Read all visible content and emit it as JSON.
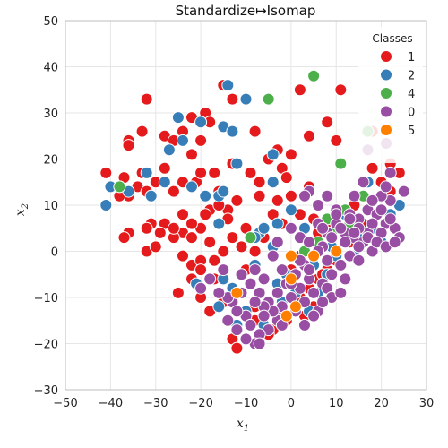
{
  "chart_data": {
    "type": "scatter",
    "title": "Standardize↦Isomap",
    "xlabel": "x",
    "xlabel_sub": "1",
    "ylabel": "x",
    "ylabel_sub": "2",
    "xlim": [
      -50,
      30
    ],
    "ylim": [
      -30,
      50
    ],
    "xticks": [
      -50,
      -40,
      -30,
      -20,
      -10,
      0,
      10,
      20,
      30
    ],
    "yticks": [
      -30,
      -20,
      -10,
      0,
      10,
      20,
      30,
      40,
      50
    ],
    "grid": true,
    "legend": {
      "title": "Classes",
      "placement": "top-right"
    },
    "series": [
      {
        "name": "1",
        "color": "#e41a1c",
        "points": [
          [
            -15,
            36
          ],
          [
            -8,
            26
          ],
          [
            -13,
            33
          ],
          [
            -32,
            33
          ],
          [
            -33,
            26
          ],
          [
            -36,
            24
          ],
          [
            -36,
            23
          ],
          [
            -28,
            25
          ],
          [
            -26,
            24
          ],
          [
            -24,
            26
          ],
          [
            -22,
            29
          ],
          [
            -19,
            30
          ],
          [
            -18,
            28
          ],
          [
            -20,
            24
          ],
          [
            -22,
            21
          ],
          [
            -28,
            18
          ],
          [
            -33,
            17
          ],
          [
            -37,
            16
          ],
          [
            -41,
            17
          ],
          [
            -30,
            15
          ],
          [
            -34,
            14
          ],
          [
            -38,
            14
          ],
          [
            -36,
            12
          ],
          [
            -32,
            13
          ],
          [
            -26,
            13
          ],
          [
            -24,
            15
          ],
          [
            -21,
            15
          ],
          [
            -17,
            17
          ],
          [
            -13,
            19
          ],
          [
            -9,
            17
          ],
          [
            -7,
            15
          ],
          [
            -5,
            20
          ],
          [
            -3,
            22
          ],
          [
            0,
            21
          ],
          [
            2,
            35
          ],
          [
            8,
            28
          ],
          [
            10,
            24
          ],
          [
            11,
            35
          ],
          [
            4,
            25
          ],
          [
            -2,
            18
          ],
          [
            -1,
            16
          ],
          [
            0,
            12
          ],
          [
            -3,
            11
          ],
          [
            -7,
            12
          ],
          [
            -12,
            11
          ],
          [
            -16,
            13
          ],
          [
            -14,
            9
          ],
          [
            -18,
            9
          ],
          [
            -19,
            8
          ],
          [
            -20,
            5
          ],
          [
            -22,
            6
          ],
          [
            -24,
            8
          ],
          [
            -24,
            4
          ],
          [
            -28,
            6
          ],
          [
            -29,
            4
          ],
          [
            -31,
            6
          ],
          [
            -32,
            5
          ],
          [
            -36,
            4
          ],
          [
            -37,
            3
          ],
          [
            -32,
            0
          ],
          [
            -26,
            3
          ],
          [
            -22,
            3
          ],
          [
            -24,
            -1
          ],
          [
            -22,
            -3
          ],
          [
            -20,
            -2
          ],
          [
            -17,
            -2
          ],
          [
            -18,
            2
          ],
          [
            -20,
            -4
          ],
          [
            -22,
            -6
          ],
          [
            -20,
            -10
          ],
          [
            -25,
            -9
          ],
          [
            -18,
            -13
          ],
          [
            -15,
            -11
          ],
          [
            -12,
            -13
          ],
          [
            -14,
            -15
          ],
          [
            -13,
            -19
          ],
          [
            -12,
            -21
          ],
          [
            -8,
            -12
          ],
          [
            -6,
            -14
          ],
          [
            -10,
            -4
          ],
          [
            -8,
            0
          ],
          [
            -11,
            1
          ],
          [
            -13,
            3
          ],
          [
            -14,
            7
          ],
          [
            -16,
            10
          ],
          [
            -10,
            5
          ],
          [
            -6,
            3
          ],
          [
            -4,
            8
          ],
          [
            -2,
            6
          ],
          [
            2,
            8
          ],
          [
            4,
            14
          ],
          [
            5,
            7
          ],
          [
            6,
            4
          ],
          [
            9,
            5
          ],
          [
            12,
            8
          ],
          [
            14,
            10
          ],
          [
            16,
            12
          ],
          [
            20,
            15
          ],
          [
            18,
            18
          ],
          [
            22,
            19
          ],
          [
            24,
            17
          ],
          [
            22,
            13
          ],
          [
            18,
            26
          ],
          [
            16,
            6
          ],
          [
            13,
            2
          ],
          [
            10,
            -2
          ],
          [
            8,
            -4
          ],
          [
            6,
            -6
          ],
          [
            4,
            -8
          ],
          [
            2,
            -10
          ],
          [
            1,
            -13
          ],
          [
            -1,
            -15
          ],
          [
            3,
            -14
          ],
          [
            5,
            -12
          ],
          [
            7,
            -5
          ],
          [
            -4,
            -17
          ],
          [
            -8,
            -15
          ],
          [
            -5,
            -18
          ],
          [
            -3,
            -13
          ],
          [
            0,
            -4
          ],
          [
            2,
            -1
          ],
          [
            -15,
            0
          ],
          [
            -17,
            -6
          ],
          [
            -20,
            17
          ],
          [
            -26,
            5
          ],
          [
            -30,
            1
          ],
          [
            -38,
            12
          ]
        ]
      },
      {
        "name": "2",
        "color": "#377eb8",
        "points": [
          [
            -14,
            36
          ],
          [
            -10,
            33
          ],
          [
            -20,
            28
          ],
          [
            -25,
            29
          ],
          [
            -15,
            27
          ],
          [
            -13,
            26
          ],
          [
            -24,
            24
          ],
          [
            -27,
            22
          ],
          [
            -32,
            17
          ],
          [
            -40,
            14
          ],
          [
            -36,
            13
          ],
          [
            -31,
            12
          ],
          [
            -28,
            15
          ],
          [
            -22,
            14
          ],
          [
            -19,
            12
          ],
          [
            -16,
            12
          ],
          [
            -15,
            13
          ],
          [
            -12,
            19
          ],
          [
            -4,
            21
          ],
          [
            -4,
            15
          ],
          [
            -7,
            4
          ],
          [
            -6,
            5
          ],
          [
            -3,
            6
          ],
          [
            0,
            9
          ],
          [
            -8,
            3
          ],
          [
            -21,
            -7
          ],
          [
            -15,
            -6
          ],
          [
            -13,
            -8
          ],
          [
            -16,
            -12
          ],
          [
            -10,
            -13
          ],
          [
            -12,
            -16
          ],
          [
            -6,
            -16
          ],
          [
            -41,
            10
          ],
          [
            -16,
            6
          ],
          [
            5,
            -3
          ],
          [
            8,
            -5
          ],
          [
            10,
            -1
          ],
          [
            12,
            8
          ],
          [
            13,
            6
          ],
          [
            15,
            3
          ],
          [
            18,
            5
          ],
          [
            20,
            2
          ],
          [
            22,
            8
          ],
          [
            24,
            10
          ],
          [
            17,
            15
          ],
          [
            -2,
            -11
          ],
          [
            1,
            -9
          ],
          [
            4,
            -13
          ],
          [
            -4,
            1
          ],
          [
            3,
            5
          ],
          [
            9,
            1
          ],
          [
            14,
            -1
          ],
          [
            -8,
            -3
          ],
          [
            -1,
            -5
          ],
          [
            6,
            -9
          ],
          [
            -3,
            -7
          ]
        ]
      },
      {
        "name": "4",
        "color": "#4daf4a",
        "points": [
          [
            5,
            38
          ],
          [
            -5,
            33
          ],
          [
            -38,
            14
          ],
          [
            11,
            19
          ],
          [
            17,
            26
          ],
          [
            16,
            12
          ],
          [
            12,
            9
          ],
          [
            8,
            7
          ],
          [
            -9,
            3
          ],
          [
            3,
            0
          ],
          [
            6,
            2
          ],
          [
            9,
            4
          ],
          [
            13,
            6
          ]
        ]
      },
      {
        "name": "0",
        "color": "#984ea3",
        "points": [
          [
            4,
            13
          ],
          [
            8,
            12
          ],
          [
            10,
            9
          ],
          [
            13,
            8
          ],
          [
            15,
            7
          ],
          [
            17,
            9
          ],
          [
            19,
            8
          ],
          [
            21,
            6
          ],
          [
            23,
            5
          ],
          [
            24,
            3
          ],
          [
            22,
            11
          ],
          [
            20,
            12
          ],
          [
            16,
            15
          ],
          [
            22,
            17
          ],
          [
            25,
            13
          ],
          [
            6,
            6
          ],
          [
            8,
            4
          ],
          [
            10,
            6
          ],
          [
            12,
            4
          ],
          [
            14,
            3
          ],
          [
            16,
            2
          ],
          [
            18,
            0
          ],
          [
            20,
            4
          ],
          [
            22,
            7
          ],
          [
            17,
            4
          ],
          [
            15,
            1
          ],
          [
            13,
            -1
          ],
          [
            11,
            -3
          ],
          [
            9,
            -5
          ],
          [
            7,
            -7
          ],
          [
            5,
            -9
          ],
          [
            3,
            -11
          ],
          [
            1,
            -13
          ],
          [
            -1,
            -14
          ],
          [
            -3,
            -15
          ],
          [
            -5,
            -17
          ],
          [
            -7,
            -18
          ],
          [
            -8,
            -20
          ],
          [
            -10,
            -19
          ],
          [
            -12,
            -17
          ],
          [
            -14,
            -15
          ],
          [
            -13,
            -11
          ],
          [
            -11,
            -9
          ],
          [
            -9,
            -7
          ],
          [
            -7,
            -9
          ],
          [
            -5,
            -11
          ],
          [
            -3,
            -9
          ],
          [
            -1,
            -7
          ],
          [
            1,
            -5
          ],
          [
            3,
            -3
          ],
          [
            5,
            -1
          ],
          [
            7,
            1
          ],
          [
            9,
            3
          ],
          [
            11,
            5
          ],
          [
            13,
            7
          ],
          [
            15,
            5
          ],
          [
            17,
            3
          ],
          [
            19,
            2
          ],
          [
            21,
            1
          ],
          [
            23,
            2
          ],
          [
            4,
            -6
          ],
          [
            2,
            -8
          ],
          [
            0,
            -10
          ],
          [
            -2,
            -12
          ],
          [
            -4,
            -13
          ],
          [
            -6,
            -12
          ],
          [
            -8,
            -11
          ],
          [
            -10,
            -14
          ],
          [
            -12,
            -13
          ],
          [
            -14,
            -10
          ],
          [
            -16,
            -9
          ],
          [
            -18,
            -6
          ],
          [
            -20,
            -8
          ],
          [
            -15,
            -4
          ],
          [
            -11,
            -5
          ],
          [
            -6,
            -6
          ],
          [
            -2,
            -4
          ],
          [
            2,
            -2
          ],
          [
            6,
            0
          ],
          [
            8,
            -2
          ],
          [
            10,
            0
          ],
          [
            12,
            2
          ],
          [
            14,
            4
          ],
          [
            18,
            6
          ],
          [
            20,
            9
          ],
          [
            6,
            10
          ],
          [
            2,
            3
          ],
          [
            -4,
            -1
          ],
          [
            -8,
            -4
          ],
          [
            0,
            -7
          ],
          [
            4,
            -4
          ],
          [
            8,
            -8
          ],
          [
            12,
            -6
          ],
          [
            9,
            -10
          ],
          [
            6,
            -13
          ],
          [
            3,
            -16
          ],
          [
            -2,
            -16
          ],
          [
            -6,
            -14
          ],
          [
            -9,
            -16
          ],
          [
            -7,
            -20
          ],
          [
            4,
            2
          ],
          [
            7,
            5
          ],
          [
            10,
            8
          ],
          [
            14,
            12
          ],
          [
            18,
            11
          ],
          [
            21,
            14
          ],
          [
            17,
            22
          ],
          [
            3,
            12
          ],
          [
            0,
            5
          ],
          [
            -3,
            2
          ],
          [
            15,
            -2
          ],
          [
            11,
            -9
          ],
          [
            7,
            -11
          ],
          [
            5,
            -14
          ]
        ]
      },
      {
        "name": "5",
        "color": "#ff7f00",
        "points": [
          [
            -12,
            -9
          ],
          [
            0,
            -6
          ],
          [
            1,
            -12
          ],
          [
            -1,
            -14
          ],
          [
            5,
            -1
          ],
          [
            0,
            -1
          ],
          [
            10,
            0
          ]
        ]
      }
    ]
  }
}
